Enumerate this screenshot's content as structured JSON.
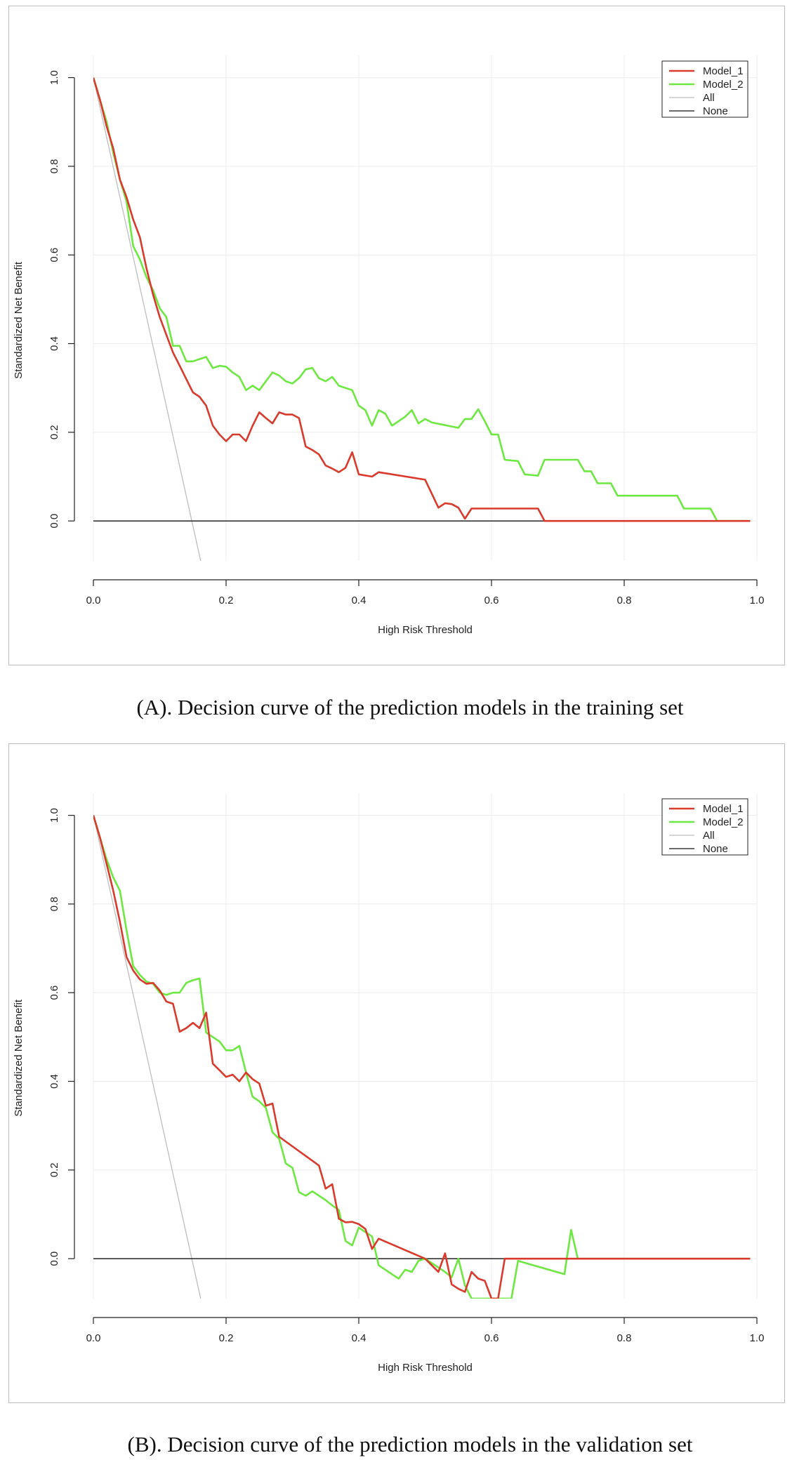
{
  "chart_data": [
    {
      "type": "line",
      "panel": "A",
      "caption": "(A). Decision curve of the prediction models in the training set",
      "xlabel": "High Risk Threshold",
      "ylabel": "Standardized Net Benefit",
      "xlim": [
        0,
        1
      ],
      "ylim": [
        -0.09,
        1.05
      ],
      "x_ticks": [
        "0.0",
        "0.2",
        "0.4",
        "0.6",
        "0.8",
        "1.0"
      ],
      "y_ticks": [
        "0.0",
        "0.2",
        "0.4",
        "0.6",
        "0.8",
        "1.0"
      ],
      "grid": true,
      "legend_position": "top-right",
      "series": [
        {
          "name": "Model_1",
          "color": "#d93a2b",
          "x": [
            0,
            0.01,
            0.02,
            0.03,
            0.04,
            0.05,
            0.06,
            0.07,
            0.08,
            0.09,
            0.1,
            0.11,
            0.12,
            0.13,
            0.14,
            0.15,
            0.16,
            0.17,
            0.18,
            0.19,
            0.2,
            0.21,
            0.22,
            0.23,
            0.24,
            0.25,
            0.26,
            0.27,
            0.28,
            0.29,
            0.3,
            0.31,
            0.32,
            0.33,
            0.34,
            0.35,
            0.36,
            0.37,
            0.38,
            0.39,
            0.4,
            0.42,
            0.43,
            0.5,
            0.52,
            0.53,
            0.54,
            0.55,
            0.56,
            0.57,
            0.6,
            0.67,
            0.68,
            0.75,
            0.8,
            0.9,
            0.99
          ],
          "y": [
            1.0,
            0.95,
            0.89,
            0.84,
            0.77,
            0.73,
            0.68,
            0.64,
            0.57,
            0.51,
            0.46,
            0.42,
            0.38,
            0.35,
            0.32,
            0.29,
            0.28,
            0.26,
            0.215,
            0.195,
            0.18,
            0.195,
            0.195,
            0.18,
            0.215,
            0.245,
            0.232,
            0.22,
            0.245,
            0.24,
            0.24,
            0.232,
            0.168,
            0.16,
            0.15,
            0.125,
            0.118,
            0.11,
            0.12,
            0.155,
            0.105,
            0.1,
            0.11,
            0.093,
            0.03,
            0.04,
            0.038,
            0.03,
            0.005,
            0.028,
            0.028,
            0.028,
            0.0,
            0.0,
            0.0,
            0.0,
            0.0
          ]
        },
        {
          "name": "Model_2",
          "color": "#6ce840",
          "x": [
            0,
            0.01,
            0.02,
            0.03,
            0.04,
            0.05,
            0.06,
            0.07,
            0.08,
            0.09,
            0.1,
            0.11,
            0.12,
            0.13,
            0.14,
            0.15,
            0.16,
            0.17,
            0.18,
            0.19,
            0.2,
            0.21,
            0.22,
            0.23,
            0.24,
            0.25,
            0.26,
            0.27,
            0.28,
            0.29,
            0.3,
            0.31,
            0.32,
            0.33,
            0.34,
            0.35,
            0.36,
            0.37,
            0.38,
            0.39,
            0.4,
            0.41,
            0.42,
            0.43,
            0.44,
            0.45,
            0.46,
            0.47,
            0.48,
            0.49,
            0.5,
            0.51,
            0.55,
            0.56,
            0.57,
            0.58,
            0.59,
            0.6,
            0.61,
            0.62,
            0.64,
            0.65,
            0.67,
            0.68,
            0.73,
            0.74,
            0.75,
            0.76,
            0.78,
            0.79,
            0.88,
            0.89,
            0.93,
            0.94,
            0.99
          ],
          "y": [
            1.0,
            0.95,
            0.9,
            0.83,
            0.77,
            0.72,
            0.62,
            0.59,
            0.55,
            0.52,
            0.48,
            0.46,
            0.395,
            0.395,
            0.36,
            0.36,
            0.365,
            0.37,
            0.345,
            0.35,
            0.348,
            0.335,
            0.325,
            0.295,
            0.305,
            0.295,
            0.315,
            0.335,
            0.328,
            0.315,
            0.31,
            0.322,
            0.342,
            0.345,
            0.322,
            0.315,
            0.325,
            0.305,
            0.3,
            0.295,
            0.26,
            0.25,
            0.215,
            0.25,
            0.242,
            0.215,
            0.225,
            0.235,
            0.25,
            0.22,
            0.23,
            0.222,
            0.21,
            0.23,
            0.23,
            0.252,
            0.225,
            0.195,
            0.195,
            0.138,
            0.135,
            0.105,
            0.102,
            0.138,
            0.138,
            0.112,
            0.112,
            0.085,
            0.085,
            0.057,
            0.057,
            0.028,
            0.028,
            0.0,
            0.0
          ]
        },
        {
          "name": "All",
          "color": "#bdbdbd",
          "x": [
            0,
            0.1617
          ],
          "y": [
            1.0,
            -0.09
          ]
        },
        {
          "name": "None",
          "color": "#111111",
          "x": [
            0,
            0.99
          ],
          "y": [
            0.0,
            0.0
          ]
        }
      ]
    },
    {
      "type": "line",
      "panel": "B",
      "caption": "(B). Decision curve of the prediction models in the validation set",
      "xlabel": "High Risk Threshold",
      "ylabel": "Standardized Net Benefit",
      "xlim": [
        0,
        1
      ],
      "ylim": [
        -0.09,
        1.05
      ],
      "x_ticks": [
        "0.0",
        "0.2",
        "0.4",
        "0.6",
        "0.8",
        "1.0"
      ],
      "y_ticks": [
        "0.0",
        "0.2",
        "0.4",
        "0.6",
        "0.8",
        "1.0"
      ],
      "grid": true,
      "legend_position": "top-right",
      "series": [
        {
          "name": "Model_1",
          "color": "#d93a2b",
          "x": [
            0,
            0.01,
            0.02,
            0.03,
            0.04,
            0.05,
            0.06,
            0.07,
            0.08,
            0.09,
            0.1,
            0.11,
            0.12,
            0.13,
            0.14,
            0.15,
            0.16,
            0.17,
            0.18,
            0.19,
            0.2,
            0.21,
            0.22,
            0.23,
            0.24,
            0.25,
            0.26,
            0.27,
            0.28,
            0.34,
            0.35,
            0.36,
            0.37,
            0.38,
            0.39,
            0.4,
            0.41,
            0.42,
            0.43,
            0.5,
            0.52,
            0.53,
            0.54,
            0.55,
            0.56,
            0.57,
            0.58,
            0.59,
            0.6,
            0.61,
            0.62,
            0.7,
            0.99
          ],
          "y": [
            1.0,
            0.95,
            0.89,
            0.83,
            0.76,
            0.68,
            0.65,
            0.63,
            0.62,
            0.622,
            0.605,
            0.58,
            0.575,
            0.512,
            0.52,
            0.532,
            0.52,
            0.555,
            0.44,
            0.425,
            0.41,
            0.415,
            0.4,
            0.42,
            0.405,
            0.395,
            0.345,
            0.35,
            0.275,
            0.21,
            0.158,
            0.168,
            0.09,
            0.082,
            0.083,
            0.078,
            0.067,
            0.022,
            0.045,
            0.0,
            -0.03,
            0.012,
            -0.058,
            -0.068,
            -0.075,
            -0.03,
            -0.045,
            -0.05,
            -0.09,
            -0.09,
            0.0,
            0.0,
            0.0
          ]
        },
        {
          "name": "Model_2",
          "color": "#6ce840",
          "x": [
            0,
            0.01,
            0.02,
            0.03,
            0.04,
            0.05,
            0.06,
            0.07,
            0.08,
            0.09,
            0.1,
            0.11,
            0.12,
            0.13,
            0.14,
            0.15,
            0.16,
            0.17,
            0.18,
            0.19,
            0.2,
            0.21,
            0.22,
            0.23,
            0.24,
            0.25,
            0.26,
            0.27,
            0.28,
            0.29,
            0.3,
            0.31,
            0.32,
            0.33,
            0.34,
            0.35,
            0.36,
            0.37,
            0.38,
            0.39,
            0.4,
            0.41,
            0.42,
            0.43,
            0.44,
            0.45,
            0.46,
            0.47,
            0.48,
            0.49,
            0.5,
            0.51,
            0.52,
            0.53,
            0.54,
            0.55,
            0.56,
            0.57,
            0.58,
            0.63,
            0.64,
            0.71,
            0.72,
            0.73,
            0.74,
            0.99
          ],
          "y": [
            1.0,
            0.95,
            0.9,
            0.86,
            0.83,
            0.74,
            0.66,
            0.64,
            0.625,
            0.62,
            0.6,
            0.595,
            0.6,
            0.6,
            0.622,
            0.628,
            0.632,
            0.51,
            0.5,
            0.49,
            0.47,
            0.47,
            0.48,
            0.42,
            0.365,
            0.355,
            0.34,
            0.285,
            0.27,
            0.215,
            0.205,
            0.15,
            0.142,
            0.152,
            0.142,
            0.132,
            0.12,
            0.11,
            0.04,
            0.03,
            0.07,
            0.06,
            0.05,
            -0.015,
            -0.025,
            -0.035,
            -0.045,
            -0.025,
            -0.03,
            -0.005,
            0.0,
            -0.01,
            -0.02,
            -0.03,
            -0.042,
            0.0,
            -0.06,
            -0.09,
            -0.09,
            -0.09,
            -0.005,
            -0.035,
            0.065,
            0.0,
            0.0,
            0.0
          ]
        },
        {
          "name": "All",
          "color": "#bdbdbd",
          "x": [
            0,
            0.1617
          ],
          "y": [
            1.0,
            -0.09
          ]
        },
        {
          "name": "None",
          "color": "#111111",
          "x": [
            0,
            0.99
          ],
          "y": [
            0.0,
            0.0
          ]
        }
      ]
    }
  ]
}
